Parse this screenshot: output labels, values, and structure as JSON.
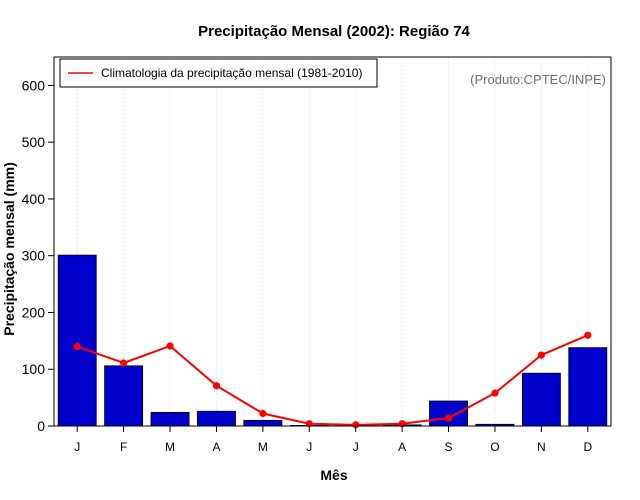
{
  "chart_data": {
    "type": "bar",
    "title": "Precipitação Mensal (2002): Região 74",
    "xlabel": "Mês",
    "ylabel": "Precipitação mensal (mm)",
    "categories": [
      "J",
      "F",
      "M",
      "A",
      "M",
      "J",
      "J",
      "A",
      "S",
      "O",
      "N",
      "D"
    ],
    "ylim": [
      0,
      650
    ],
    "yticks": [
      0,
      100,
      200,
      300,
      400,
      500,
      600
    ],
    "grid": "vertical dotted",
    "series": [
      {
        "name": "Precipitação mensal 2002",
        "kind": "bar",
        "color": "#0000cc",
        "values": [
          301,
          106,
          24,
          26,
          10,
          1,
          1,
          2,
          44,
          3,
          93,
          138
        ]
      },
      {
        "name": "Climatologia da precipitação mensal (1981-2010)",
        "kind": "line",
        "color": "#ff0000",
        "values": [
          140,
          111,
          141,
          71,
          22,
          4,
          2,
          4,
          14,
          58,
          125,
          160
        ]
      }
    ],
    "legend": {
      "position": "top-left",
      "entries": [
        "Climatologia da precipitação mensal (1981-2010)"
      ]
    },
    "annotation": "(Produto:CPTEC/INPE)"
  }
}
